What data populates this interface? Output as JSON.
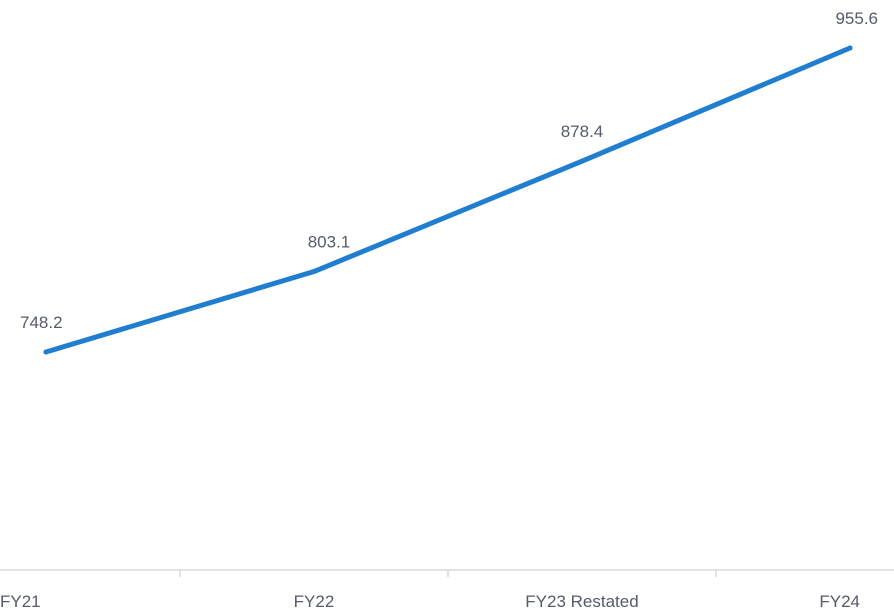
{
  "chart_data": {
    "type": "line",
    "categories": [
      "FY21",
      "FY22",
      "FY23 Restated",
      "FY24"
    ],
    "series": [
      {
        "values": [
          748.2,
          803.1,
          878.4,
          955.6
        ],
        "labels": [
          "748.2",
          "803.1",
          "878.4",
          "955.6"
        ],
        "color": "#1f7ed0"
      }
    ],
    "title": "",
    "xlabel": "",
    "ylabel": "",
    "ylim": [
      600,
      960
    ],
    "grid": false,
    "legend": "none",
    "axis_color": "#d9d9d9"
  }
}
